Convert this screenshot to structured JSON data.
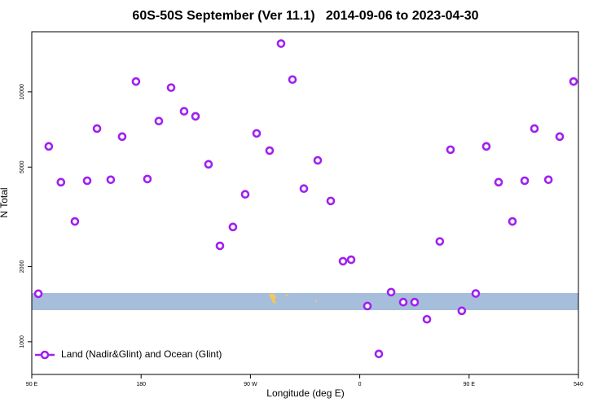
{
  "chart_data": {
    "type": "scatter",
    "title": "60S-50S September (Ver 11.1)   2014-09-06 to 2023-04-30",
    "x_label": "Longitude (deg E)",
    "y_label": "N Total",
    "xlim": [
      90,
      540
    ],
    "ylim": [
      740,
      17400
    ],
    "log_y": true,
    "legend": "bottom-left",
    "xticks": [
      {
        "value": 90,
        "label": "90 E"
      },
      180,
      {
        "value": 270,
        "label": "90 W"
      },
      {
        "value": 360,
        "label": "0"
      },
      {
        "value": 450,
        "label": "90 E"
      },
      540
    ],
    "yticks": [
      1000,
      2000,
      5000,
      10000
    ],
    "series": [
      {
        "name": "Land (Nadir&Glint) and Ocean (Glint)",
        "color": "#a020f0",
        "x": [
          95.4,
          104,
          114,
          125.5,
          135.6,
          143.7,
          155,
          164.4,
          175.8,
          185.2,
          194.6,
          204.7,
          215.4,
          224.8,
          235.5,
          244.9,
          255.6,
          265.7,
          275.1,
          285.8,
          295.2,
          304.6,
          314,
          325.4,
          336.1,
          346.2,
          352.9,
          366.3,
          375.7,
          385.8,
          395.8,
          405.2,
          415.3,
          425.9,
          434.7,
          444,
          455.5,
          464.2,
          474.3,
          485.7,
          495.8,
          503.8,
          515.3,
          524.6,
          536
        ],
        "values": [
          1557,
          6050,
          4350,
          3030,
          4410,
          7130,
          4450,
          6620,
          11000,
          4480,
          7640,
          10400,
          8360,
          7980,
          5130,
          2420,
          2880,
          3890,
          6820,
          5820,
          15600,
          11200,
          4100,
          5320,
          3660,
          2100,
          2130,
          1390,
          894,
          1580,
          1440,
          1440,
          1230,
          2520,
          5870,
          1330,
          1560,
          6050,
          4350,
          3030,
          4410,
          7130,
          4450,
          6620,
          11000
        ]
      }
    ]
  }
}
